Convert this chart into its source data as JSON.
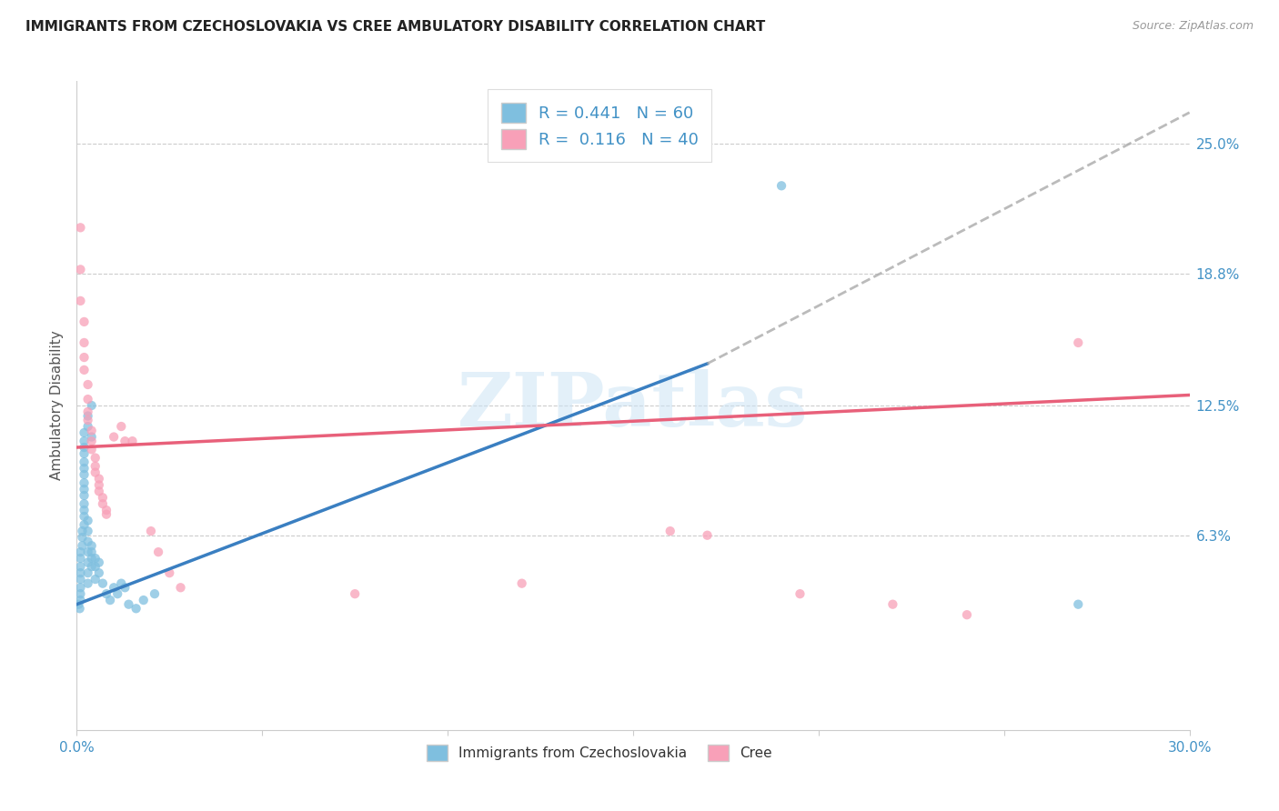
{
  "title": "IMMIGRANTS FROM CZECHOSLOVAKIA VS CREE AMBULATORY DISABILITY CORRELATION CHART",
  "source": "Source: ZipAtlas.com",
  "ylabel": "Ambulatory Disability",
  "yticks": [
    "25.0%",
    "18.8%",
    "12.5%",
    "6.3%"
  ],
  "ytick_vals": [
    0.25,
    0.188,
    0.125,
    0.063
  ],
  "xmin": 0.0,
  "xmax": 0.3,
  "ymin": -0.03,
  "ymax": 0.28,
  "legend1_R": "0.441",
  "legend1_N": "60",
  "legend2_R": "0.116",
  "legend2_N": "40",
  "blue_color": "#7fbfdf",
  "pink_color": "#f8a0b8",
  "blue_line_color": "#3a7fc1",
  "pink_line_color": "#e8607a",
  "blue_scatter": [
    [
      0.0005,
      0.03
    ],
    [
      0.0008,
      0.028
    ],
    [
      0.001,
      0.032
    ],
    [
      0.001,
      0.035
    ],
    [
      0.001,
      0.038
    ],
    [
      0.001,
      0.042
    ],
    [
      0.001,
      0.045
    ],
    [
      0.001,
      0.048
    ],
    [
      0.001,
      0.052
    ],
    [
      0.001,
      0.055
    ],
    [
      0.0015,
      0.058
    ],
    [
      0.0015,
      0.062
    ],
    [
      0.0015,
      0.065
    ],
    [
      0.002,
      0.068
    ],
    [
      0.002,
      0.072
    ],
    [
      0.002,
      0.075
    ],
    [
      0.002,
      0.078
    ],
    [
      0.002,
      0.082
    ],
    [
      0.002,
      0.085
    ],
    [
      0.002,
      0.088
    ],
    [
      0.002,
      0.092
    ],
    [
      0.002,
      0.095
    ],
    [
      0.002,
      0.098
    ],
    [
      0.002,
      0.102
    ],
    [
      0.002,
      0.105
    ],
    [
      0.002,
      0.108
    ],
    [
      0.002,
      0.112
    ],
    [
      0.003,
      0.04
    ],
    [
      0.003,
      0.045
    ],
    [
      0.003,
      0.05
    ],
    [
      0.003,
      0.055
    ],
    [
      0.003,
      0.06
    ],
    [
      0.003,
      0.065
    ],
    [
      0.003,
      0.07
    ],
    [
      0.003,
      0.115
    ],
    [
      0.003,
      0.12
    ],
    [
      0.004,
      0.048
    ],
    [
      0.004,
      0.052
    ],
    [
      0.004,
      0.055
    ],
    [
      0.004,
      0.058
    ],
    [
      0.004,
      0.11
    ],
    [
      0.004,
      0.125
    ],
    [
      0.005,
      0.042
    ],
    [
      0.005,
      0.048
    ],
    [
      0.005,
      0.052
    ],
    [
      0.006,
      0.045
    ],
    [
      0.006,
      0.05
    ],
    [
      0.007,
      0.04
    ],
    [
      0.008,
      0.035
    ],
    [
      0.009,
      0.032
    ],
    [
      0.01,
      0.038
    ],
    [
      0.011,
      0.035
    ],
    [
      0.012,
      0.04
    ],
    [
      0.013,
      0.038
    ],
    [
      0.014,
      0.03
    ],
    [
      0.016,
      0.028
    ],
    [
      0.018,
      0.032
    ],
    [
      0.021,
      0.035
    ],
    [
      0.19,
      0.23
    ],
    [
      0.27,
      0.03
    ]
  ],
  "pink_scatter": [
    [
      0.001,
      0.21
    ],
    [
      0.001,
      0.19
    ],
    [
      0.001,
      0.175
    ],
    [
      0.002,
      0.165
    ],
    [
      0.002,
      0.155
    ],
    [
      0.002,
      0.148
    ],
    [
      0.002,
      0.142
    ],
    [
      0.003,
      0.135
    ],
    [
      0.003,
      0.128
    ],
    [
      0.003,
      0.122
    ],
    [
      0.003,
      0.118
    ],
    [
      0.004,
      0.113
    ],
    [
      0.004,
      0.108
    ],
    [
      0.004,
      0.104
    ],
    [
      0.005,
      0.1
    ],
    [
      0.005,
      0.096
    ],
    [
      0.005,
      0.093
    ],
    [
      0.006,
      0.09
    ],
    [
      0.006,
      0.087
    ],
    [
      0.006,
      0.084
    ],
    [
      0.007,
      0.081
    ],
    [
      0.007,
      0.078
    ],
    [
      0.008,
      0.075
    ],
    [
      0.008,
      0.073
    ],
    [
      0.01,
      0.11
    ],
    [
      0.012,
      0.115
    ],
    [
      0.013,
      0.108
    ],
    [
      0.015,
      0.108
    ],
    [
      0.02,
      0.065
    ],
    [
      0.022,
      0.055
    ],
    [
      0.025,
      0.045
    ],
    [
      0.028,
      0.038
    ],
    [
      0.16,
      0.065
    ],
    [
      0.195,
      0.035
    ],
    [
      0.22,
      0.03
    ],
    [
      0.24,
      0.025
    ],
    [
      0.17,
      0.063
    ],
    [
      0.27,
      0.155
    ],
    [
      0.12,
      0.04
    ],
    [
      0.075,
      0.035
    ]
  ],
  "blue_line": [
    0.0,
    0.03,
    0.17,
    0.145
  ],
  "pink_line": [
    0.0,
    0.105,
    0.3,
    0.13
  ],
  "blue_dash_line": [
    0.17,
    0.145,
    0.3,
    0.265
  ],
  "watermark_text": "ZIPatlas",
  "legend_label1": "Immigrants from Czechoslovakia",
  "legend_label2": "Cree"
}
